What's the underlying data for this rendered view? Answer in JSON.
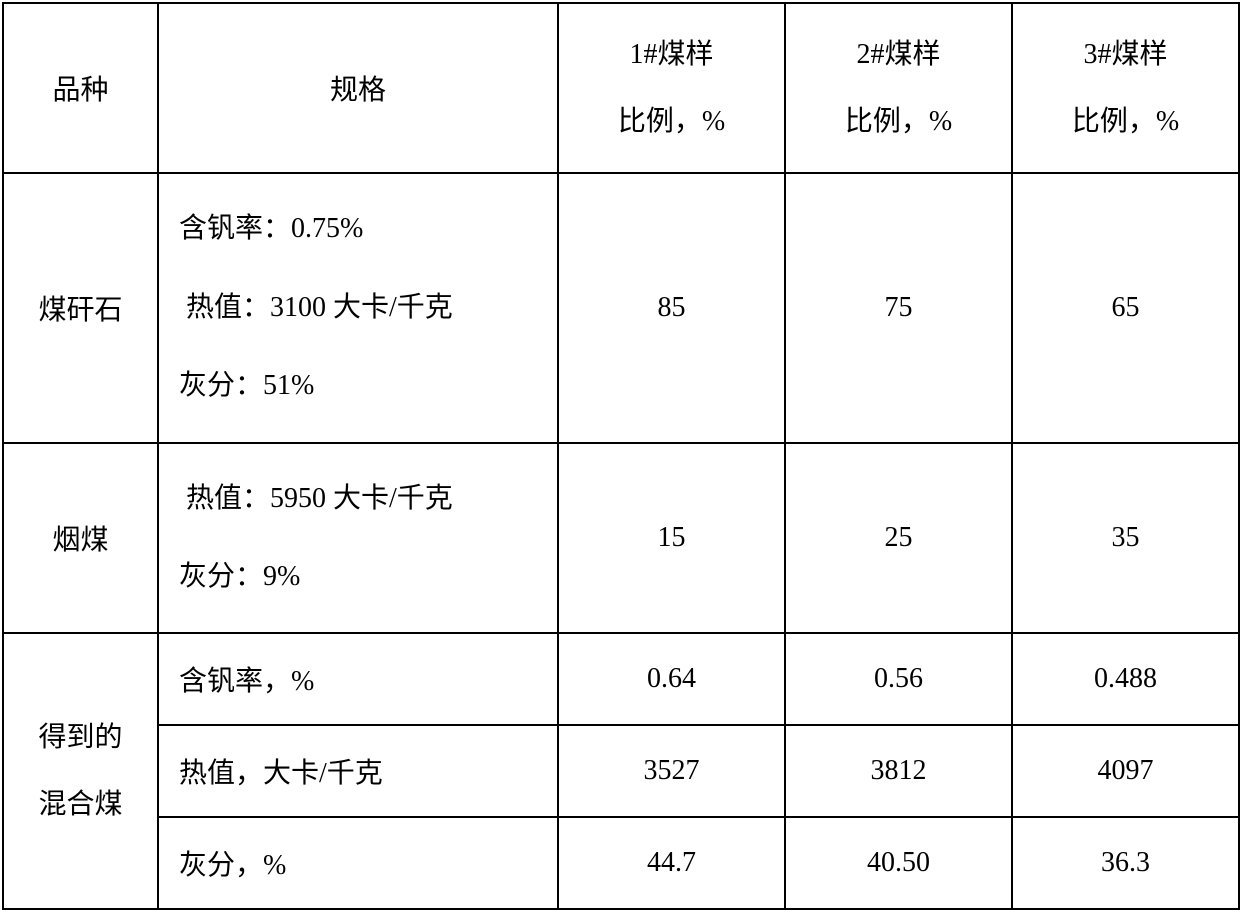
{
  "table": {
    "headers": {
      "variety": "品种",
      "spec": "规格",
      "sample1_line1": "1#煤样",
      "sample1_line2": "比例，%",
      "sample2_line1": "2#煤样",
      "sample2_line2": "比例，%",
      "sample3_line1": "3#煤样",
      "sample3_line2": "比例，%"
    },
    "rows": {
      "gangue": {
        "variety": "煤矸石",
        "spec_line1": "含钒率：0.75%",
        "spec_line2": " 热值：3100 大卡/千克",
        "spec_line3": "灰分：51%",
        "sample1": "85",
        "sample2": "75",
        "sample3": "65"
      },
      "bituminous": {
        "variety": "烟煤",
        "spec_line1": " 热值：5950 大卡/千克",
        "spec_line2": "灰分：9%",
        "sample1": "15",
        "sample2": "25",
        "sample3": "35"
      },
      "result": {
        "variety_line1": "得到的",
        "variety_line2": "混合煤",
        "vanadium": {
          "label": "含钒率，%",
          "sample1": "0.64",
          "sample2": "0.56",
          "sample3": "0.488"
        },
        "calorific": {
          "label": "热值，大卡/千克",
          "sample1": "3527",
          "sample2": "3812",
          "sample3": "4097"
        },
        "ash": {
          "label": "灰分，%",
          "sample1": "44.7",
          "sample2": "40.50",
          "sample3": "36.3"
        }
      }
    },
    "styling": {
      "border_color": "#000000",
      "background_color": "#ffffff",
      "text_color": "#000000",
      "font_size": 28,
      "border_width": 2
    }
  }
}
